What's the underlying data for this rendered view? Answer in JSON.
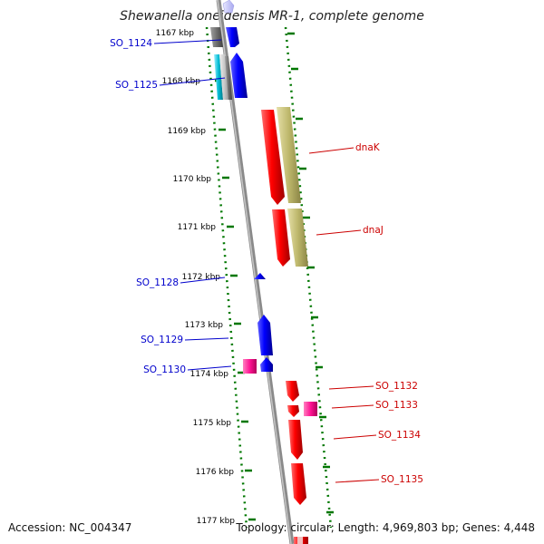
{
  "header": {
    "title": "Shewanella oneidensis MR-1, complete genome"
  },
  "footer": {
    "accession": "Accession: NC_004347",
    "topology": "Topology: circular; Length: 4,969,803 bp; Genes: 4,448"
  },
  "colors": {
    "forward_label": "#0000cc",
    "reverse_label": "#cc0000",
    "backbone": "#8a8a8a",
    "ruler_dots": "#007700",
    "gene_blue": "#0000ff",
    "gene_red": "#ff0000",
    "gene_magenta": "#ff1493",
    "gene_khaki": "#bdb76b",
    "gene_gray": "#6f6f6f",
    "gene_cyan": "#00bcd4",
    "gene_light_gray": "#c8c8c8"
  },
  "ruler": {
    "unit": "kbp",
    "ticks": [
      "1167 kbp",
      "1168 kbp",
      "1169 kbp",
      "1170 kbp",
      "1171 kbp",
      "1172 kbp",
      "1173 kbp",
      "1174 kbp",
      "1175 kbp",
      "1176 kbp",
      "1177 kbp"
    ]
  },
  "gene_labels": {
    "forward": [
      "SO_1124",
      "SO_1125",
      "SO_1128",
      "SO_1129",
      "SO_1130"
    ],
    "reverse": [
      "dnaK",
      "dnaJ",
      "SO_1132",
      "SO_1133",
      "SO_1134",
      "SO_1135"
    ]
  }
}
